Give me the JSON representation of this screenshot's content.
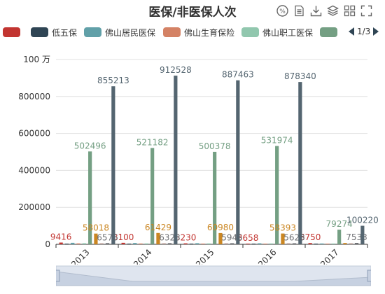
{
  "title": "医保/非医保人次",
  "toolbox": [
    "percent-icon",
    "data-view-icon",
    "save-image-icon",
    "stack-icon",
    "grid-icon",
    "fullscreen-icon"
  ],
  "legend": {
    "items": [
      {
        "name": "",
        "color": "#c23531"
      },
      {
        "name": "低五保",
        "color": "#2f4554"
      },
      {
        "name": "佛山居民医保",
        "color": "#61a0a8"
      },
      {
        "name": "佛山生育保险",
        "color": "#d48265"
      },
      {
        "name": "佛山职工医保",
        "color": "#91c7ae"
      },
      {
        "name": "",
        "color": "#749f83"
      }
    ],
    "page": "1/3"
  },
  "chart_data": {
    "type": "bar",
    "categories": [
      "2013",
      "2014",
      "2015",
      "2016",
      "2017"
    ],
    "yaxis": {
      "min": 0,
      "max": 1000000,
      "ticks": [
        "0",
        "200000",
        "400000",
        "600000",
        "800000",
        "100 万"
      ]
    },
    "series": [
      {
        "color": "#c23531",
        "values": [
          9416,
          8100,
          5230,
          3658,
          6750
        ],
        "labels": [
          "9416",
          "8100",
          "5230",
          "3658",
          "6750"
        ]
      },
      {
        "color": "#2f4554",
        "values": [
          500,
          400,
          350,
          300,
          250
        ],
        "labels": [
          "",
          "",
          "",
          "",
          ""
        ]
      },
      {
        "color": "#61a0a8",
        "values": [
          8000,
          7000,
          6000,
          5500,
          4500
        ],
        "labels": [
          "",
          "",
          "",
          "",
          ""
        ]
      },
      {
        "color": "#d48265",
        "values": [
          5000,
          4500,
          4000,
          3800,
          3500
        ],
        "labels": [
          "",
          "",
          "",
          "",
          ""
        ]
      },
      {
        "color": "#91c7ae",
        "values": [
          6000,
          5000,
          5000,
          4800,
          4500
        ],
        "labels": [
          "",
          "",
          "",
          "",
          ""
        ]
      },
      {
        "color": "#749f83",
        "values": [
          502496,
          521182,
          500378,
          531974,
          79274
        ],
        "labels": [
          "502496",
          "521182",
          "500378",
          "531974",
          "79274"
        ]
      },
      {
        "color": "#ca8622",
        "values": [
          58018,
          61429,
          60980,
          58393,
          7000
        ],
        "labels": [
          "58018",
          "61429",
          "60980",
          "58393",
          ""
        ]
      },
      {
        "color": "#bda29a",
        "values": [
          6000,
          6000,
          6000,
          6000,
          6000
        ],
        "labels": [
          "",
          "",
          "",
          "",
          ""
        ]
      },
      {
        "color": "#6e7074",
        "values": [
          6576,
          6323,
          5945,
          5623,
          7533
        ],
        "labels": [
          "6576",
          "6323",
          "5945",
          "5623",
          "7533"
        ]
      },
      {
        "color": "#546570",
        "values": [
          855213,
          912528,
          887463,
          878340,
          100220
        ],
        "labels": [
          "855213",
          "912528",
          "887463",
          "878340",
          "100220"
        ]
      }
    ]
  },
  "datazoom": {
    "start_percent": 0,
    "end_percent": 100
  }
}
